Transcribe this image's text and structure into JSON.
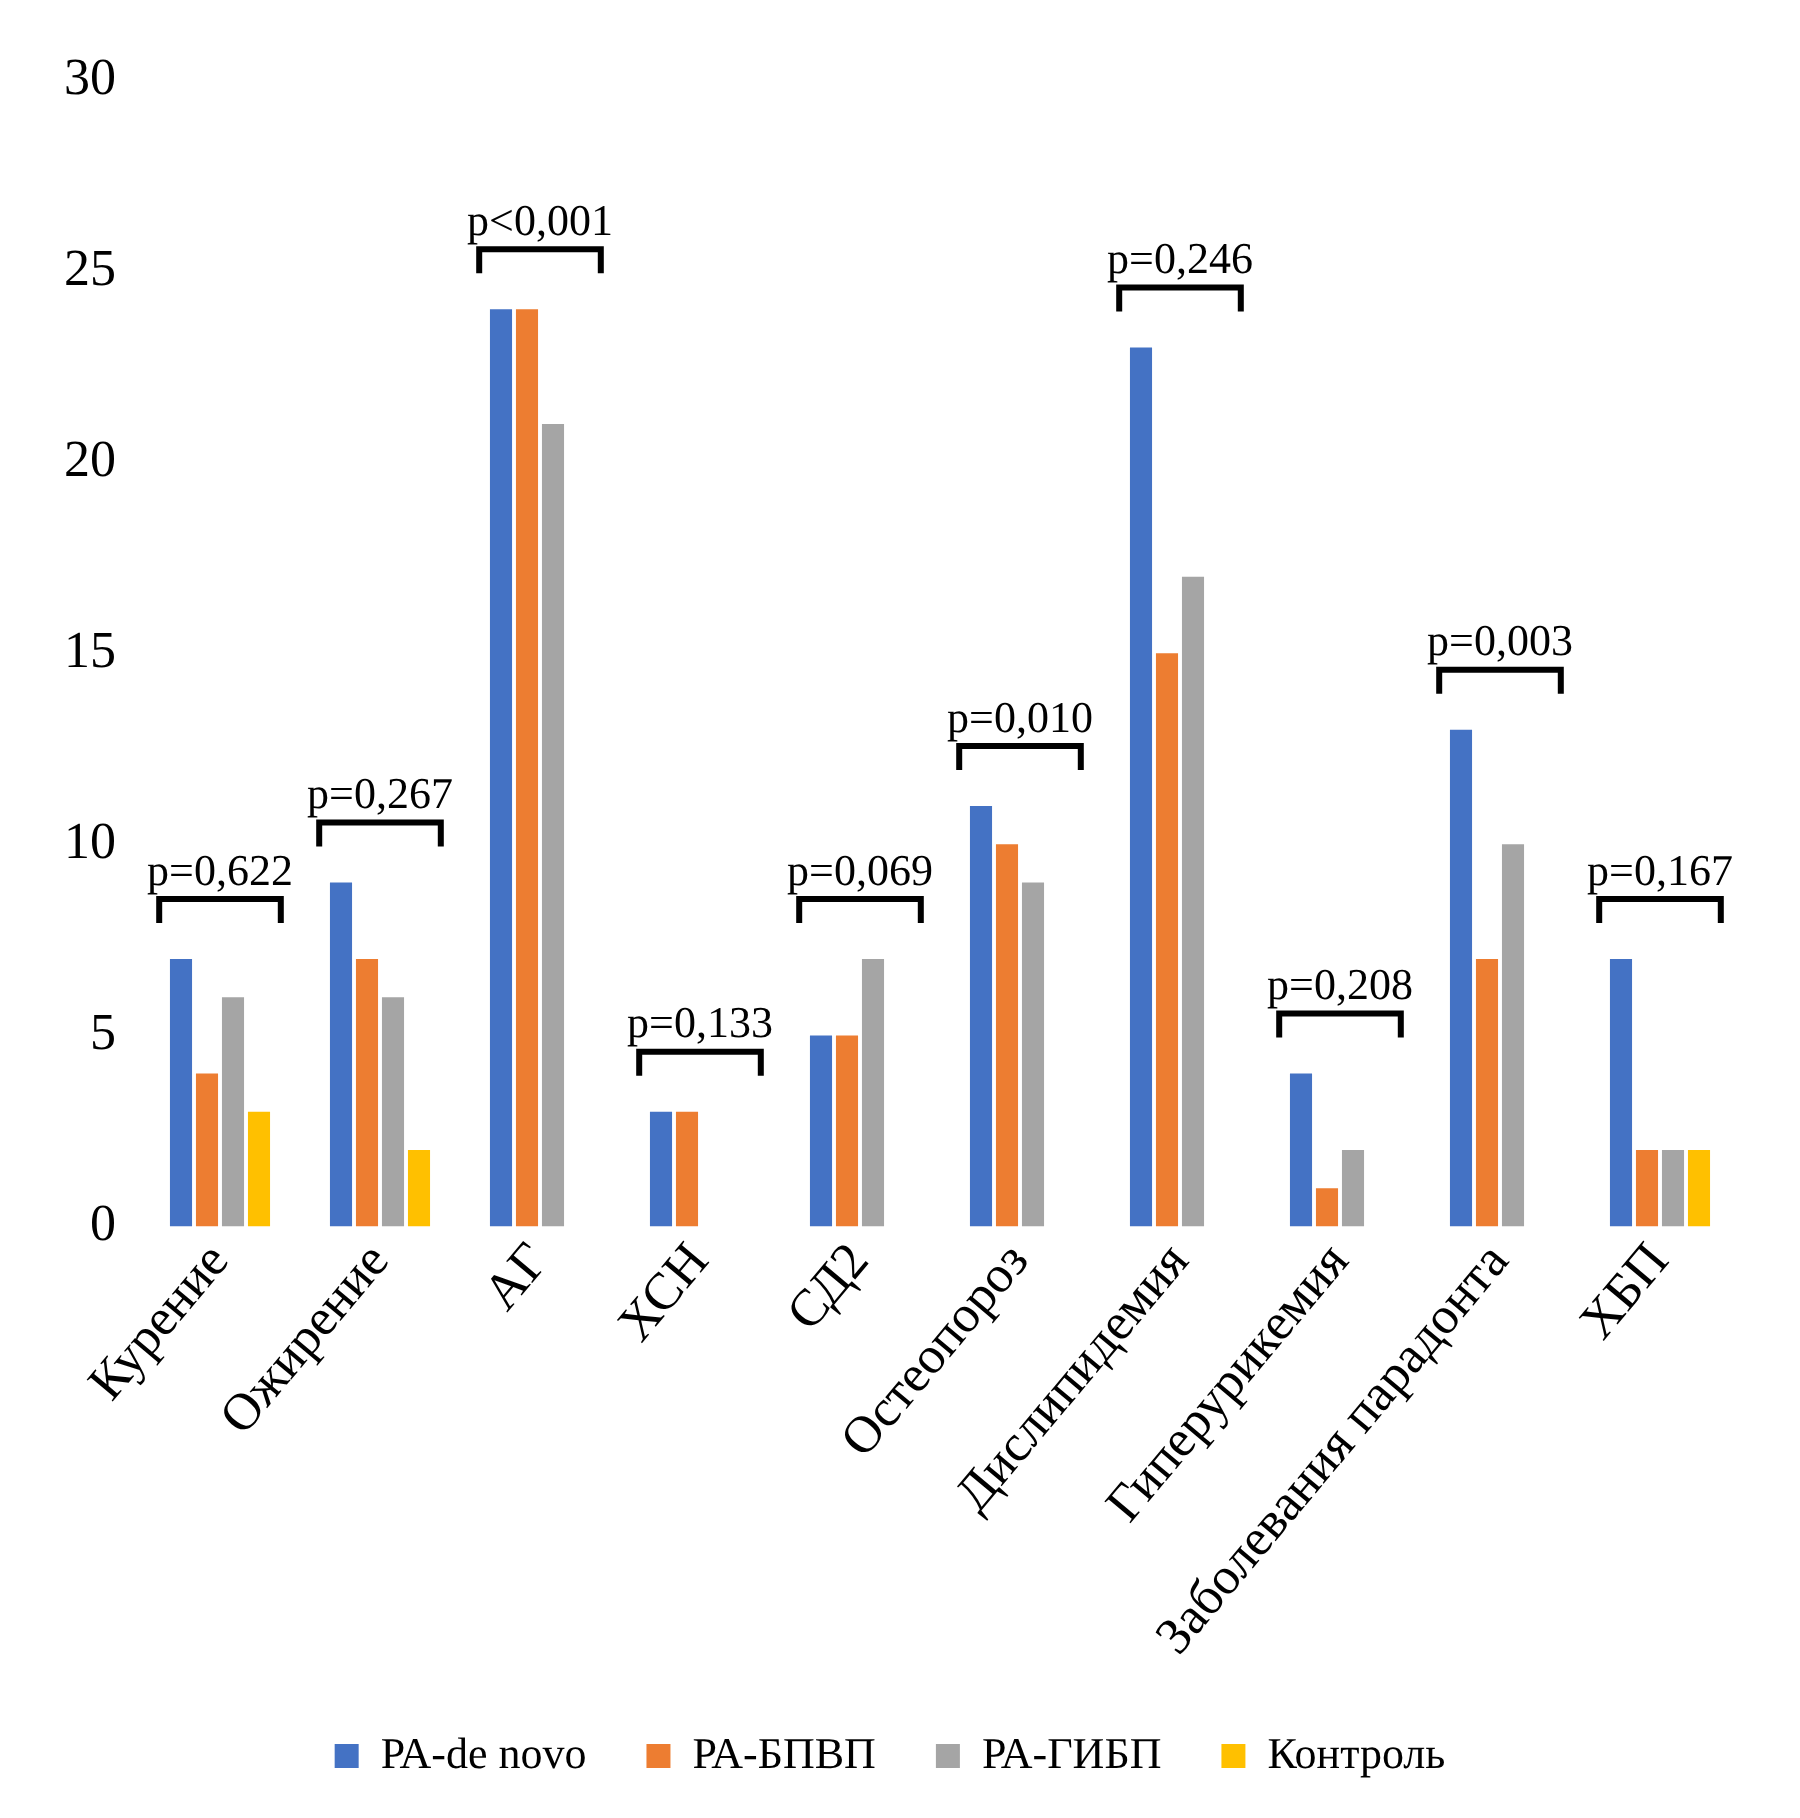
{
  "chart_data": {
    "type": "bar",
    "categories": [
      "Курение",
      "Ожирение",
      "АГ",
      "ХСН",
      "СД2",
      "Остеопороз",
      "Дислипидемия",
      "Гиперурикемия",
      "Заболевания парадонта",
      "ХБП"
    ],
    "series": [
      {
        "name": "РА-de novo",
        "color": "#4472c4",
        "values": [
          7,
          9,
          24,
          3,
          5,
          11,
          23,
          4,
          13,
          7
        ]
      },
      {
        "name": "РА-БПВП",
        "color": "#ed7d31",
        "values": [
          4,
          7,
          24,
          3,
          5,
          10,
          15,
          1,
          7,
          2
        ]
      },
      {
        "name": "РА-ГИБП",
        "color": "#a5a5a5",
        "values": [
          6,
          6,
          21,
          0,
          7,
          9,
          17,
          2,
          10,
          2
        ]
      },
      {
        "name": "Контроль",
        "color": "#ffc000",
        "values": [
          3,
          2,
          0,
          0,
          0,
          0,
          0,
          0,
          0,
          2
        ]
      }
    ],
    "ylim": [
      0,
      30
    ],
    "yticks": [
      0,
      5,
      10,
      15,
      20,
      25,
      30
    ],
    "grid": false,
    "legend": "bottom",
    "annotations": [
      "p=0,622",
      "p=0,267",
      "p<0,001",
      "p=0,133",
      "p=0,069",
      "p=0,010",
      "p=0,246",
      "p=0,208",
      "p=0,003",
      "p=0,167"
    ]
  }
}
